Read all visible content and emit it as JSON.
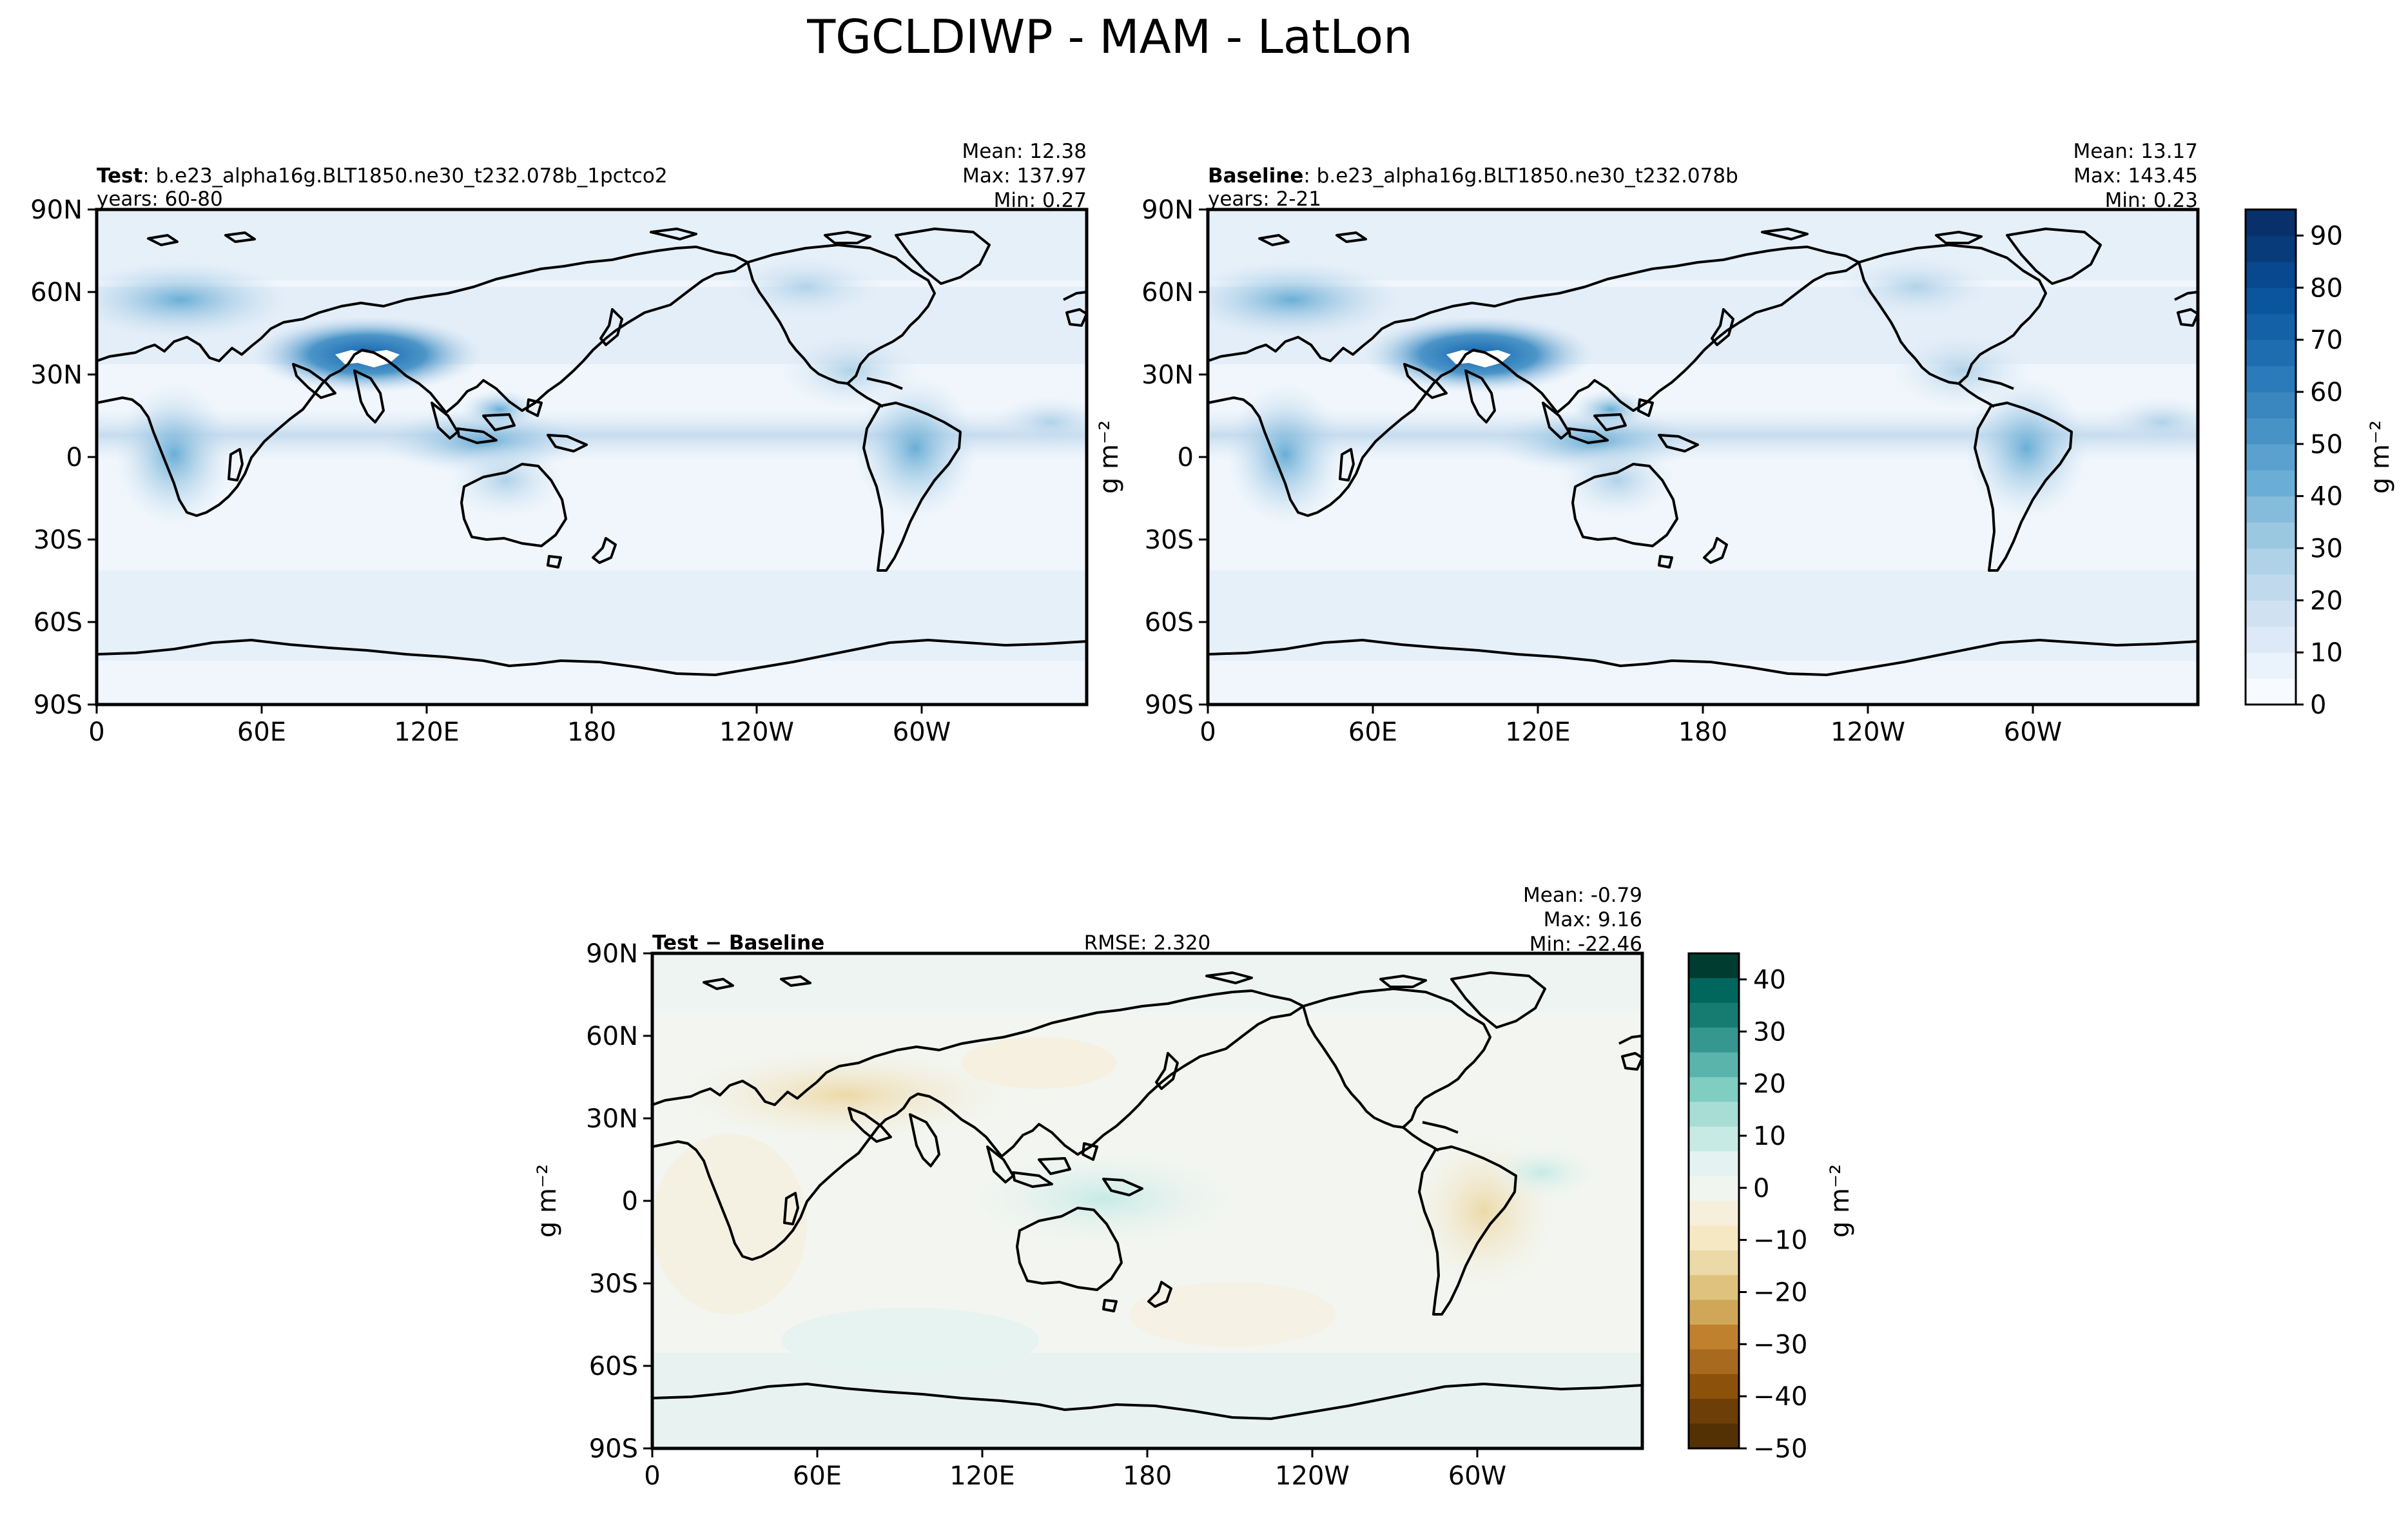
{
  "figure": {
    "title": "TGCLDIWP - MAM - LatLon"
  },
  "axes": {
    "lat_ticks": [
      "90N",
      "60N",
      "30N",
      "0",
      "30S",
      "60S",
      "90S"
    ],
    "lon_ticks": [
      "0",
      "60E",
      "120E",
      "180",
      "120W",
      "60W"
    ]
  },
  "panels": {
    "test": {
      "label": "Test",
      "case": ": b.e23_alpha16g.BLT1850.ne30_t232.078b_1pctco2",
      "years": "years: 60-80",
      "mean": "Mean: 12.38",
      "max": "Max: 137.97",
      "min": "Min:  0.27"
    },
    "baseline": {
      "label": "Baseline",
      "case": ": b.e23_alpha16g.BLT1850.ne30_t232.078b",
      "years": "years: 2-21",
      "mean": "Mean: 13.17",
      "max": "Max: 143.45",
      "min": "Min:  0.23",
      "ylabel": "g m⁻²"
    },
    "diff": {
      "label": "Test − Baseline",
      "rmse": "RMSE: 2.320",
      "mean": "Mean: -0.79",
      "max": "Max:  9.16",
      "min": "Min: -22.46",
      "ylabel": "g m⁻²"
    }
  },
  "colorbars": {
    "main": {
      "label": "g m⁻²",
      "ticks": [
        "0",
        "10",
        "20",
        "30",
        "40",
        "50",
        "60",
        "70",
        "80",
        "90"
      ],
      "colors": [
        "#f7fbff",
        "#eaf3fb",
        "#dde9f6",
        "#d0e2f2",
        "#c1d9ed",
        "#b0d2e8",
        "#9ac8e0",
        "#85bcdc",
        "#6aaed6",
        "#5aa1cf",
        "#4893c6",
        "#3a86bf",
        "#2b7ab9",
        "#1f6db1",
        "#1561a8",
        "#0b559f",
        "#08488e",
        "#083b7a",
        "#08306b"
      ]
    },
    "diff": {
      "label": "g m⁻²",
      "ticks": [
        "40",
        "30",
        "20",
        "10",
        "0",
        "−10",
        "−20",
        "−30",
        "−40",
        "−50"
      ],
      "colors_top_to_bottom": [
        "#003c30",
        "#01665e",
        "#167c72",
        "#35978f",
        "#5ab4ac",
        "#80cdc1",
        "#a8ddd5",
        "#c7eae5",
        "#e4f3f1",
        "#f1f5ef",
        "#f6efdc",
        "#f6e8c3",
        "#ecd9a8",
        "#dfc27d",
        "#d0a759",
        "#bf812d",
        "#a86a1f",
        "#8c510a",
        "#6e3e08",
        "#543005"
      ]
    }
  },
  "chart_data": {
    "type": "heatmap",
    "title": "TGCLDIWP - MAM - LatLon",
    "variable": "TGCLDIWP",
    "season": "MAM",
    "units": "g m⁻²",
    "panels": [
      {
        "name": "Test",
        "mean": 12.38,
        "max": 137.97,
        "min": 0.27,
        "years": "60-80"
      },
      {
        "name": "Baseline",
        "mean": 13.17,
        "max": 143.45,
        "min": 0.23,
        "years": "2-21"
      },
      {
        "name": "Test − Baseline",
        "mean": -0.79,
        "max": 9.16,
        "min": -22.46,
        "rmse": 2.32
      }
    ],
    "colorbar_main": {
      "range": [
        0,
        95
      ],
      "ticks": [
        0,
        10,
        20,
        30,
        40,
        50,
        60,
        70,
        80,
        90
      ]
    },
    "colorbar_diff": {
      "range": [
        -50,
        45
      ],
      "ticks": [
        -50,
        -40,
        -30,
        -20,
        -10,
        0,
        10,
        20,
        30,
        40
      ]
    },
    "xlim": [
      0,
      360
    ],
    "ylim": [
      -90,
      90
    ]
  }
}
